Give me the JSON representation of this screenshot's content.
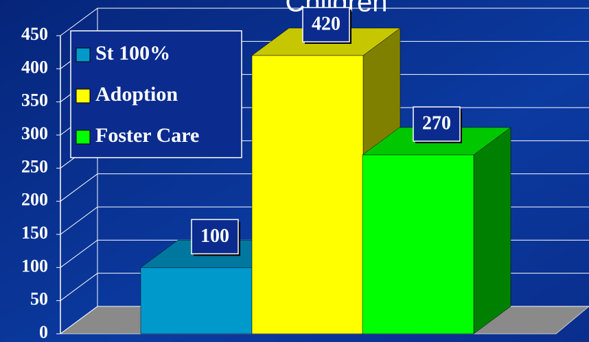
{
  "chart_data": {
    "type": "bar3d",
    "title": "Children",
    "series": [
      {
        "name": "St 100%",
        "color": "#0099cc",
        "values": [
          100
        ]
      },
      {
        "name": "Adoption",
        "color": "#ffff00",
        "values": [
          420
        ]
      },
      {
        "name": "Foster Care",
        "color": "#00ff00",
        "values": [
          270
        ]
      }
    ],
    "ylim": [
      0,
      450
    ],
    "yticks": [
      0,
      50,
      100,
      150,
      200,
      250,
      300,
      350,
      400,
      450
    ],
    "grid": true,
    "legend": "upper left"
  }
}
